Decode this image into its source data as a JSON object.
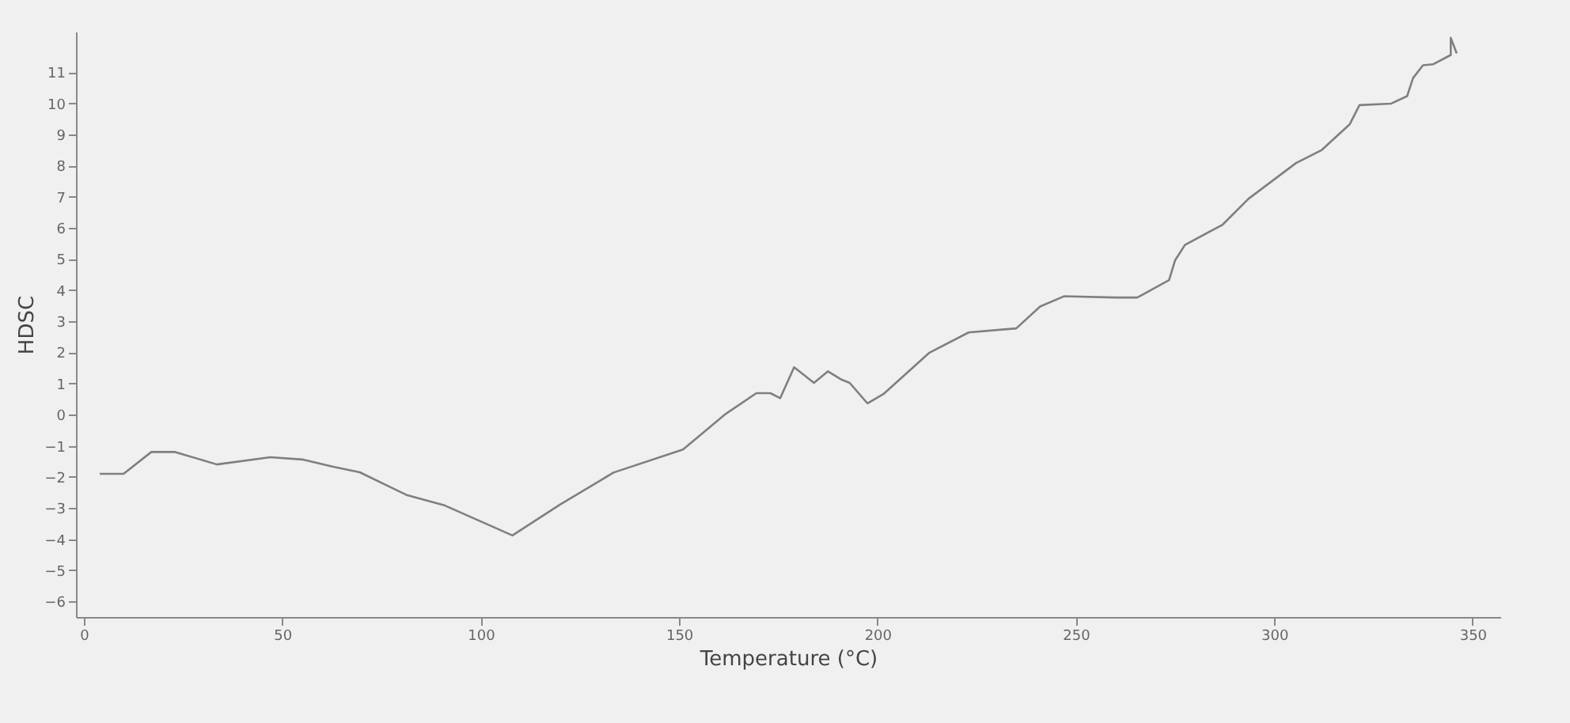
{
  "chart_data": {
    "type": "line",
    "xlabel": "Temperature (°C)",
    "ylabel": "HDSC",
    "xlim": [
      -2,
      357
    ],
    "ylim": [
      -6.5,
      12.3
    ],
    "xticks": [
      0,
      50,
      100,
      150,
      200,
      250,
      300,
      350
    ],
    "yticks": [
      -6,
      -5,
      -4,
      -3,
      -2,
      -1,
      0,
      1,
      2,
      3,
      4,
      5,
      6,
      7,
      8,
      9,
      10,
      11
    ],
    "grid": false,
    "legend": false,
    "series": [
      {
        "color": "#7f7f7f",
        "x": [
          4,
          10,
          17,
          23,
          33.5,
          47,
          55,
          63,
          69.5,
          81.5,
          91,
          108,
          120,
          133.5,
          151,
          161.5,
          169.5,
          173,
          175.5,
          179,
          184,
          187.5,
          191,
          193,
          197.5,
          201.5,
          213,
          223,
          235,
          241,
          247,
          260,
          265.5,
          273.5,
          275,
          277.5,
          287,
          293.5,
          305.5,
          312,
          319,
          321.5,
          329.5,
          333.5,
          335,
          337.5,
          340,
          344.5,
          344.5,
          346
        ],
        "values": [
          -1.9,
          -1.9,
          -1.2,
          -1.2,
          -1.6,
          -1.37,
          -1.44,
          -1.68,
          -1.85,
          -2.59,
          -2.92,
          -3.88,
          -2.89,
          -1.86,
          -1.12,
          0,
          0.69,
          0.69,
          0.53,
          1.52,
          1.02,
          1.39,
          1.12,
          1.02,
          0.36,
          0.66,
          1.98,
          2.64,
          2.77,
          3.47,
          3.8,
          3.76,
          3.76,
          4.32,
          4.95,
          5.45,
          6.1,
          6.93,
          8.08,
          8.5,
          9.32,
          9.94,
          9.99,
          10.23,
          10.81,
          11.22,
          11.25,
          11.55,
          12.1,
          11.6
        ]
      }
    ]
  }
}
